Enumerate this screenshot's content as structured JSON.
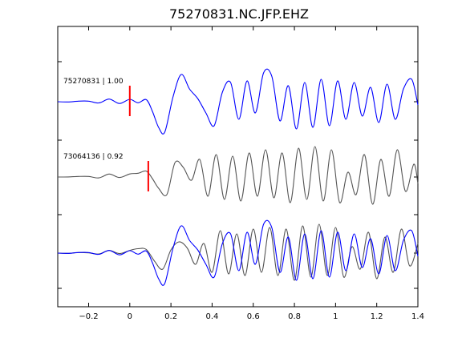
{
  "chart_data": {
    "type": "line",
    "title": "75270831.NC.JFP.EHZ",
    "xlim": [
      -0.35,
      1.4
    ],
    "x_ticks": [
      -0.2,
      0,
      0.2,
      0.4,
      0.6,
      0.8,
      1,
      1.2,
      1.4
    ],
    "x_tick_labels": [
      "−0.2",
      "0",
      "0.2",
      "0.4",
      "0.6",
      "0.8",
      "1",
      "1.2",
      "1.4"
    ],
    "grid": false,
    "colors": {
      "reference": "#0000ff",
      "comparison": "#555555",
      "pick": "#ff0000"
    },
    "panels": [
      {
        "label": "75270831 | 1.00",
        "pick_time": 0.0,
        "series": [
          {
            "color": "#0000ff",
            "x": [
              -0.35,
              -0.3,
              -0.25,
              -0.2,
              -0.15,
              -0.1,
              -0.05,
              0.0,
              0.04,
              0.08,
              0.11,
              0.14,
              0.17,
              0.21,
              0.25,
              0.29,
              0.33,
              0.37,
              0.41,
              0.45,
              0.49,
              0.53,
              0.57,
              0.61,
              0.65,
              0.69,
              0.73,
              0.77,
              0.81,
              0.85,
              0.89,
              0.93,
              0.97,
              1.01,
              1.05,
              1.09,
              1.13,
              1.17,
              1.21,
              1.25,
              1.29,
              1.33,
              1.37,
              1.4
            ],
            "y": [
              0.0,
              0.02,
              -0.02,
              0.04,
              -0.03,
              0.05,
              -0.02,
              0.06,
              -0.05,
              0.1,
              -0.3,
              -0.8,
              -0.95,
              0.15,
              0.85,
              0.4,
              0.1,
              -0.35,
              -0.75,
              0.3,
              0.6,
              -0.55,
              0.65,
              -0.35,
              0.9,
              0.8,
              -0.6,
              0.5,
              -0.85,
              0.6,
              -0.8,
              0.7,
              -0.75,
              0.65,
              -0.55,
              0.6,
              -0.45,
              0.45,
              -0.65,
              0.55,
              -0.55,
              0.4,
              0.7,
              -0.1
            ]
          }
        ]
      },
      {
        "label": "73064136 | 0.92",
        "pick_time": 0.09,
        "series": [
          {
            "color": "#555555",
            "x": [
              -0.35,
              -0.3,
              -0.25,
              -0.2,
              -0.15,
              -0.1,
              -0.05,
              0.0,
              0.04,
              0.08,
              0.11,
              0.14,
              0.18,
              0.22,
              0.26,
              0.3,
              0.34,
              0.38,
              0.42,
              0.46,
              0.5,
              0.54,
              0.58,
              0.62,
              0.66,
              0.7,
              0.74,
              0.78,
              0.82,
              0.86,
              0.9,
              0.94,
              0.98,
              1.02,
              1.06,
              1.1,
              1.14,
              1.18,
              1.22,
              1.26,
              1.3,
              1.34,
              1.38,
              1.4
            ],
            "y": [
              0.0,
              0.03,
              -0.02,
              0.04,
              -0.02,
              0.06,
              0.02,
              0.08,
              0.1,
              0.22,
              -0.05,
              -0.35,
              -0.55,
              0.45,
              0.3,
              -0.1,
              0.55,
              -0.6,
              0.7,
              -0.7,
              0.65,
              -0.75,
              0.75,
              -0.6,
              0.85,
              -0.65,
              0.75,
              -0.8,
              0.9,
              -0.7,
              0.95,
              -0.75,
              0.85,
              -0.8,
              0.15,
              -0.55,
              0.7,
              -0.85,
              0.55,
              -0.6,
              0.85,
              -0.45,
              0.4,
              -0.2
            ]
          }
        ]
      },
      {
        "label": "",
        "pick_time": null,
        "series": [
          {
            "color": "#555555",
            "x": [
              -0.35,
              -0.3,
              -0.25,
              -0.2,
              -0.15,
              -0.1,
              -0.05,
              0.0,
              0.04,
              0.08,
              0.12,
              0.16,
              0.2,
              0.24,
              0.28,
              0.32,
              0.36,
              0.4,
              0.44,
              0.48,
              0.52,
              0.56,
              0.6,
              0.64,
              0.68,
              0.72,
              0.76,
              0.8,
              0.84,
              0.88,
              0.92,
              0.96,
              1.0,
              1.04,
              1.08,
              1.12,
              1.16,
              1.2,
              1.24,
              1.28,
              1.32,
              1.36,
              1.4
            ],
            "y": [
              0.0,
              0.02,
              -0.02,
              0.03,
              -0.02,
              0.05,
              0.02,
              0.07,
              0.12,
              0.15,
              -0.25,
              -0.5,
              0.1,
              0.35,
              0.15,
              -0.35,
              0.3,
              -0.6,
              0.7,
              -0.65,
              0.6,
              -0.7,
              0.75,
              -0.6,
              0.8,
              -0.7,
              0.75,
              -0.85,
              0.85,
              -0.75,
              0.9,
              -0.7,
              0.8,
              -0.75,
              0.2,
              -0.5,
              0.65,
              -0.8,
              0.5,
              -0.6,
              0.75,
              -0.4,
              0.3
            ]
          },
          {
            "color": "#0000ff",
            "x": [
              -0.35,
              -0.3,
              -0.25,
              -0.2,
              -0.15,
              -0.1,
              -0.05,
              0.0,
              0.04,
              0.08,
              0.11,
              0.14,
              0.17,
              0.21,
              0.25,
              0.29,
              0.33,
              0.37,
              0.41,
              0.45,
              0.49,
              0.53,
              0.57,
              0.61,
              0.65,
              0.69,
              0.73,
              0.77,
              0.81,
              0.85,
              0.89,
              0.93,
              0.97,
              1.01,
              1.05,
              1.09,
              1.13,
              1.17,
              1.21,
              1.25,
              1.29,
              1.33,
              1.37,
              1.4
            ],
            "y": [
              0.0,
              0.02,
              -0.02,
              0.04,
              -0.03,
              0.05,
              -0.02,
              0.06,
              -0.05,
              0.1,
              -0.3,
              -0.8,
              -0.95,
              0.15,
              0.85,
              0.4,
              0.1,
              -0.35,
              -0.75,
              0.3,
              0.6,
              -0.55,
              0.65,
              -0.35,
              0.9,
              0.8,
              -0.6,
              0.5,
              -0.85,
              0.6,
              -0.8,
              0.7,
              -0.75,
              0.65,
              -0.55,
              0.6,
              -0.45,
              0.45,
              -0.65,
              0.55,
              -0.55,
              0.4,
              0.7,
              -0.1
            ]
          }
        ]
      }
    ]
  }
}
